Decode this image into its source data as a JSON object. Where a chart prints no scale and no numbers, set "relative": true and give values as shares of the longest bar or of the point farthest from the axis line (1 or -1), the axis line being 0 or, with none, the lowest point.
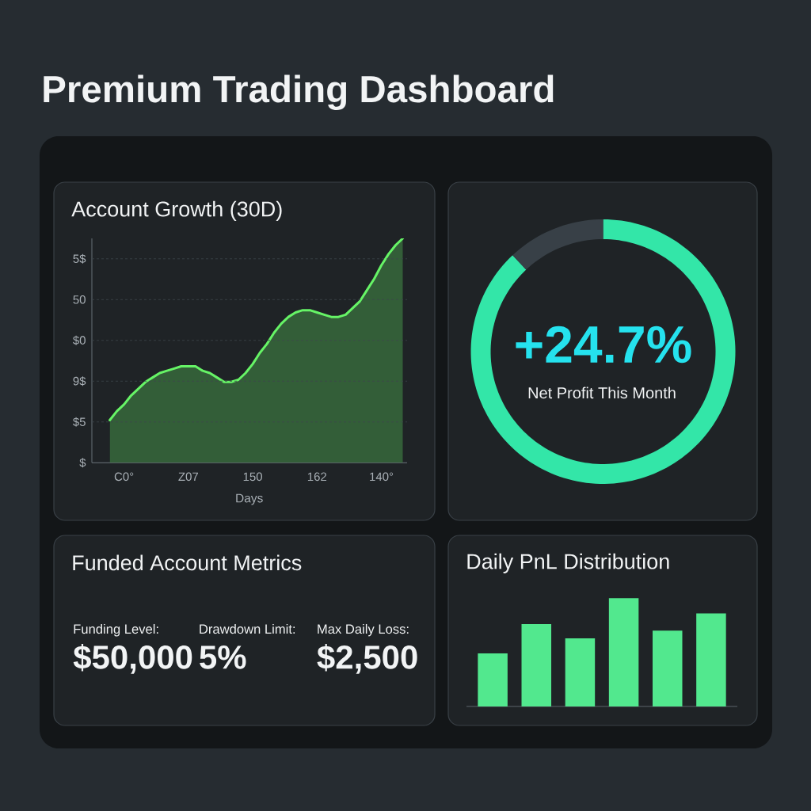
{
  "chart_data": [
    {
      "type": "other",
      "title": "Premium Trading Dashboard"
    },
    {
      "type": "area",
      "title": "Account Growth (30D)",
      "xlabel": "Days",
      "categories": [
        null,
        null,
        "C0°",
        null,
        null,
        null,
        null,
        null,
        null,
        null,
        null,
        "Z07",
        null,
        null,
        null,
        null,
        null,
        null,
        null,
        null,
        "150",
        null,
        null,
        null,
        null,
        null,
        null,
        null,
        null,
        "162",
        null,
        null,
        null,
        null,
        null,
        null,
        null,
        null,
        "140°",
        null,
        null,
        null
      ],
      "values": [
        0.19,
        0.23,
        0.26,
        0.3,
        0.33,
        0.36,
        0.38,
        0.4,
        0.41,
        0.42,
        0.43,
        0.43,
        0.43,
        0.41,
        0.4,
        0.38,
        0.36,
        0.36,
        0.37,
        0.4,
        0.44,
        0.49,
        0.53,
        0.58,
        0.62,
        0.65,
        0.67,
        0.68,
        0.68,
        0.67,
        0.66,
        0.65,
        0.65,
        0.66,
        0.69,
        0.72,
        0.77,
        0.82,
        0.88,
        0.93,
        0.97,
        1
      ],
      "color": "#66f466",
      "relative": true,
      "annotations": [
        "5$",
        "50",
        "$0",
        "9$",
        "$5",
        "$"
      ],
      "grid": "y",
      "marker": "none",
      "line_style": "solid"
    },
    {
      "type": "donut",
      "categories": [
        null,
        null
      ],
      "values": [
        88,
        12
      ],
      "colors": [
        "#33e6a8",
        "#384047"
      ],
      "annotations": [
        "+24.7%",
        "Net Profit This Month"
      ]
    },
    {
      "type": "other",
      "title": "Funded Account Metrics",
      "annotations": [
        "Funding Level:",
        "$50,000",
        "Drawdown Limit:",
        "5%",
        "Max Daily Loss:",
        "$2,500"
      ]
    },
    {
      "type": "bar",
      "title": "Daily PnL Distribution",
      "categories": [
        null,
        null,
        null,
        null,
        null,
        null
      ],
      "values": [
        0.49,
        0.76,
        0.63,
        1,
        0.7,
        0.86
      ],
      "color": "#52e88e",
      "relative": true
    }
  ]
}
